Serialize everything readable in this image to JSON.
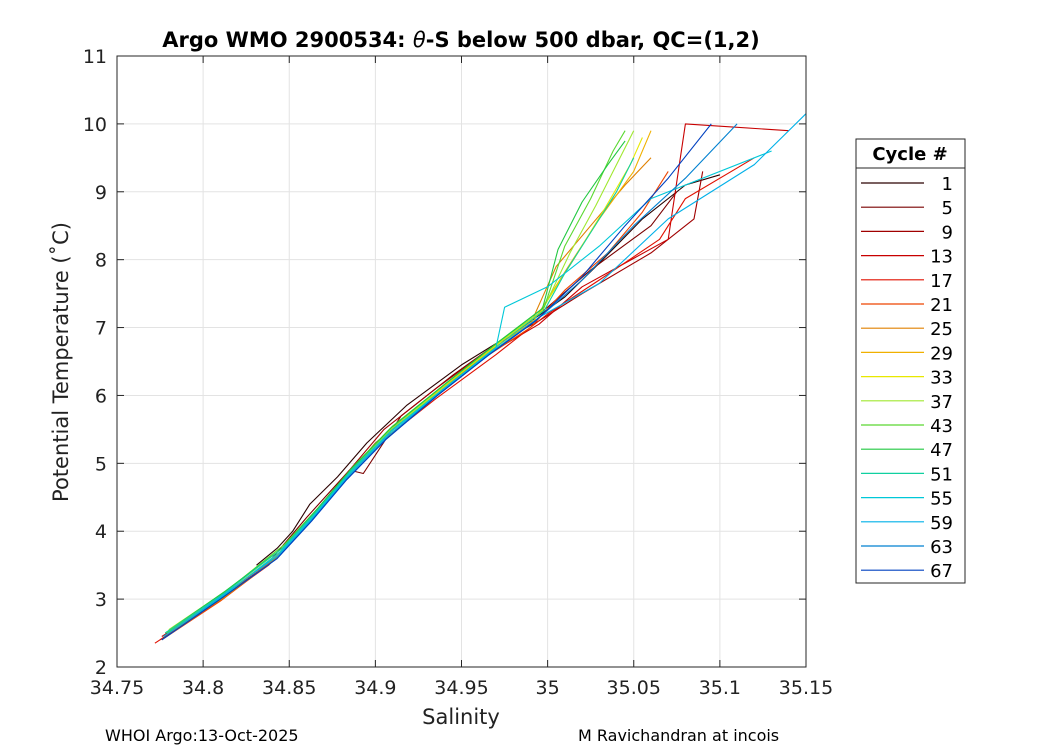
{
  "chart_data": {
    "type": "line",
    "title_prefix": "Argo WMO 2900534: ",
    "title_theta": "θ",
    "title_suffix": "-S below 500 dbar,  QC=(1,2)",
    "xlabel": "Salinity",
    "ylabel": "Potential Temperature (˚C)",
    "xlim": [
      34.75,
      35.15
    ],
    "ylim": [
      2,
      11
    ],
    "xticks": [
      34.75,
      34.8,
      34.85,
      34.9,
      34.95,
      35,
      35.05,
      35.1,
      35.15
    ],
    "xtick_labels": [
      "34.75",
      "34.8",
      "34.85",
      "34.9",
      "34.95",
      "35",
      "35.05",
      "35.1",
      "35.15"
    ],
    "yticks": [
      2,
      3,
      4,
      5,
      6,
      7,
      8,
      9,
      10,
      11
    ],
    "ytick_labels": [
      "2",
      "3",
      "4",
      "5",
      "6",
      "7",
      "8",
      "9",
      "10",
      "11"
    ],
    "grid": true,
    "legend_title": "Cycle #",
    "legend_position": "outside-right",
    "series": [
      {
        "name": "1",
        "color": "#2a0000",
        "points": [
          [
            34.831,
            3.5
          ],
          [
            34.843,
            3.75
          ],
          [
            34.852,
            4.0
          ],
          [
            34.862,
            4.4
          ],
          [
            34.878,
            4.8
          ],
          [
            34.895,
            5.3
          ],
          [
            34.918,
            5.85
          ],
          [
            34.95,
            6.45
          ],
          [
            34.985,
            7.0
          ],
          [
            35.01,
            7.45
          ],
          [
            35.03,
            7.95
          ],
          [
            35.055,
            8.6
          ],
          [
            35.08,
            9.1
          ],
          [
            35.1,
            9.25
          ]
        ]
      },
      {
        "name": "5",
        "color": "#7a0000",
        "points": [
          [
            34.78,
            2.5
          ],
          [
            34.81,
            3.0
          ],
          [
            34.84,
            3.6
          ],
          [
            34.86,
            4.2
          ],
          [
            34.885,
            4.9
          ],
          [
            34.893,
            4.85
          ],
          [
            34.915,
            5.7
          ],
          [
            34.945,
            6.3
          ],
          [
            34.978,
            6.9
          ],
          [
            35.0,
            7.3
          ],
          [
            35.025,
            7.85
          ],
          [
            35.06,
            8.5
          ],
          [
            35.075,
            9.0
          ]
        ]
      },
      {
        "name": "9",
        "color": "#a00000",
        "points": [
          [
            34.775,
            2.4
          ],
          [
            34.808,
            2.95
          ],
          [
            34.84,
            3.55
          ],
          [
            34.862,
            4.15
          ],
          [
            34.88,
            4.75
          ],
          [
            34.905,
            5.5
          ],
          [
            34.935,
            6.1
          ],
          [
            34.97,
            6.75
          ],
          [
            34.995,
            7.1
          ],
          [
            35.02,
            7.5
          ],
          [
            35.06,
            8.1
          ],
          [
            35.085,
            8.6
          ],
          [
            35.09,
            9.3
          ]
        ]
      },
      {
        "name": "13",
        "color": "#c80000",
        "points": [
          [
            34.776,
            2.45
          ],
          [
            34.81,
            3.0
          ],
          [
            34.842,
            3.6
          ],
          [
            34.863,
            4.2
          ],
          [
            34.88,
            4.7
          ],
          [
            34.9,
            5.3
          ],
          [
            34.93,
            5.95
          ],
          [
            34.965,
            6.6
          ],
          [
            34.995,
            7.05
          ],
          [
            35.02,
            7.6
          ],
          [
            35.07,
            8.3
          ],
          [
            35.08,
            10.0
          ],
          [
            35.14,
            9.9
          ]
        ]
      },
      {
        "name": "17",
        "color": "#e01000",
        "points": [
          [
            34.772,
            2.35
          ],
          [
            34.805,
            2.9
          ],
          [
            34.838,
            3.5
          ],
          [
            34.858,
            4.05
          ],
          [
            34.877,
            4.6
          ],
          [
            34.9,
            5.25
          ],
          [
            34.935,
            5.95
          ],
          [
            34.97,
            6.6
          ],
          [
            35.0,
            7.2
          ],
          [
            35.03,
            7.7
          ],
          [
            35.065,
            8.3
          ],
          [
            35.08,
            8.9
          ],
          [
            35.12,
            9.5
          ]
        ]
      },
      {
        "name": "21",
        "color": "#ee4400",
        "points": [
          [
            34.776,
            2.4
          ],
          [
            34.81,
            2.97
          ],
          [
            34.84,
            3.55
          ],
          [
            34.86,
            4.1
          ],
          [
            34.878,
            4.65
          ],
          [
            34.9,
            5.3
          ],
          [
            34.93,
            5.9
          ],
          [
            34.96,
            6.5
          ],
          [
            34.99,
            7.0
          ],
          [
            35.01,
            7.55
          ],
          [
            35.035,
            8.1
          ],
          [
            35.055,
            8.7
          ],
          [
            35.07,
            9.3
          ]
        ]
      },
      {
        "name": "25",
        "color": "#e08000",
        "points": [
          [
            34.777,
            2.45
          ],
          [
            34.812,
            3.02
          ],
          [
            34.842,
            3.6
          ],
          [
            34.862,
            4.15
          ],
          [
            34.882,
            4.75
          ],
          [
            34.905,
            5.35
          ],
          [
            34.935,
            6.0
          ],
          [
            34.965,
            6.6
          ],
          [
            34.99,
            7.05
          ],
          [
            35.005,
            7.9
          ],
          [
            35.025,
            8.5
          ],
          [
            35.045,
            9.1
          ],
          [
            35.06,
            9.5
          ]
        ]
      },
      {
        "name": "29",
        "color": "#f0b000",
        "points": [
          [
            34.778,
            2.5
          ],
          [
            34.812,
            3.05
          ],
          [
            34.843,
            3.65
          ],
          [
            34.863,
            4.2
          ],
          [
            34.883,
            4.8
          ],
          [
            34.906,
            5.4
          ],
          [
            34.936,
            6.05
          ],
          [
            34.966,
            6.65
          ],
          [
            34.992,
            7.1
          ],
          [
            35.012,
            7.9
          ],
          [
            35.03,
            8.6
          ],
          [
            35.05,
            9.3
          ],
          [
            35.06,
            9.9
          ]
        ]
      },
      {
        "name": "33",
        "color": "#e8e800",
        "points": [
          [
            34.779,
            2.5
          ],
          [
            34.814,
            3.1
          ],
          [
            34.845,
            3.7
          ],
          [
            34.865,
            4.25
          ],
          [
            34.885,
            4.85
          ],
          [
            34.908,
            5.45
          ],
          [
            34.938,
            6.1
          ],
          [
            34.968,
            6.7
          ],
          [
            34.995,
            7.2
          ],
          [
            35.015,
            8.0
          ],
          [
            35.032,
            8.7
          ],
          [
            35.048,
            9.4
          ],
          [
            35.055,
            9.8
          ]
        ]
      },
      {
        "name": "37",
        "color": "#a0e830",
        "points": [
          [
            34.78,
            2.55
          ],
          [
            34.815,
            3.15
          ],
          [
            34.846,
            3.75
          ],
          [
            34.866,
            4.3
          ],
          [
            34.886,
            4.9
          ],
          [
            34.909,
            5.5
          ],
          [
            34.94,
            6.15
          ],
          [
            34.97,
            6.75
          ],
          [
            34.997,
            7.25
          ],
          [
            35.013,
            8.1
          ],
          [
            35.028,
            8.8
          ],
          [
            35.042,
            9.5
          ],
          [
            35.05,
            9.9
          ]
        ]
      },
      {
        "name": "43",
        "color": "#5ad830",
        "points": [
          [
            34.779,
            2.5
          ],
          [
            34.815,
            3.15
          ],
          [
            34.847,
            3.8
          ],
          [
            34.867,
            4.35
          ],
          [
            34.887,
            4.95
          ],
          [
            34.91,
            5.55
          ],
          [
            34.942,
            6.2
          ],
          [
            34.972,
            6.8
          ],
          [
            34.998,
            7.3
          ],
          [
            35.01,
            8.2
          ],
          [
            35.025,
            8.9
          ],
          [
            35.038,
            9.6
          ],
          [
            35.045,
            9.9
          ]
        ]
      },
      {
        "name": "47",
        "color": "#20c840",
        "points": [
          [
            34.778,
            2.5
          ],
          [
            34.813,
            3.12
          ],
          [
            34.846,
            3.75
          ],
          [
            34.866,
            4.32
          ],
          [
            34.886,
            4.92
          ],
          [
            34.909,
            5.52
          ],
          [
            34.941,
            6.18
          ],
          [
            34.971,
            6.78
          ],
          [
            34.997,
            7.28
          ],
          [
            35.006,
            8.15
          ],
          [
            35.02,
            8.85
          ],
          [
            35.035,
            9.4
          ],
          [
            35.045,
            9.75
          ]
        ]
      },
      {
        "name": "51",
        "color": "#10d0a0",
        "points": [
          [
            34.778,
            2.5
          ],
          [
            34.813,
            3.1
          ],
          [
            34.846,
            3.75
          ],
          [
            34.866,
            4.3
          ],
          [
            34.886,
            4.9
          ],
          [
            34.91,
            5.5
          ],
          [
            34.942,
            6.15
          ],
          [
            34.972,
            6.75
          ],
          [
            34.998,
            7.25
          ],
          [
            35.01,
            7.8
          ],
          [
            35.025,
            8.4
          ],
          [
            35.04,
            9.0
          ],
          [
            35.05,
            9.5
          ]
        ]
      },
      {
        "name": "55",
        "color": "#00c8d8",
        "points": [
          [
            34.777,
            2.45
          ],
          [
            34.812,
            3.05
          ],
          [
            34.845,
            3.7
          ],
          [
            34.865,
            4.25
          ],
          [
            34.885,
            4.85
          ],
          [
            34.908,
            5.45
          ],
          [
            34.94,
            6.1
          ],
          [
            34.97,
            6.7
          ],
          [
            34.975,
            7.3
          ],
          [
            35.0,
            7.6
          ],
          [
            35.03,
            8.2
          ],
          [
            35.06,
            8.9
          ],
          [
            35.13,
            9.6
          ]
        ]
      },
      {
        "name": "59",
        "color": "#00b0e8",
        "points": [
          [
            34.777,
            2.45
          ],
          [
            34.811,
            3.05
          ],
          [
            34.844,
            3.65
          ],
          [
            34.864,
            4.2
          ],
          [
            34.884,
            4.8
          ],
          [
            34.907,
            5.4
          ],
          [
            34.938,
            6.05
          ],
          [
            34.968,
            6.65
          ],
          [
            34.995,
            7.15
          ],
          [
            35.03,
            7.65
          ],
          [
            35.07,
            8.6
          ],
          [
            35.12,
            9.4
          ],
          [
            35.15,
            10.15
          ]
        ]
      },
      {
        "name": "63",
        "color": "#0080d0",
        "points": [
          [
            34.776,
            2.4
          ],
          [
            34.81,
            3.0
          ],
          [
            34.843,
            3.6
          ],
          [
            34.863,
            4.15
          ],
          [
            34.883,
            4.75
          ],
          [
            34.906,
            5.35
          ],
          [
            34.936,
            6.0
          ],
          [
            34.966,
            6.6
          ],
          [
            34.993,
            7.1
          ],
          [
            35.02,
            7.7
          ],
          [
            35.05,
            8.5
          ],
          [
            35.08,
            9.2
          ],
          [
            35.11,
            10.0
          ]
        ]
      },
      {
        "name": "67",
        "color": "#0040c0",
        "points": [
          [
            34.776,
            2.4
          ],
          [
            34.81,
            3.0
          ],
          [
            34.843,
            3.6
          ],
          [
            34.863,
            4.15
          ],
          [
            34.883,
            4.75
          ],
          [
            34.906,
            5.35
          ],
          [
            34.936,
            6.0
          ],
          [
            34.966,
            6.6
          ],
          [
            34.993,
            7.1
          ],
          [
            35.02,
            7.75
          ],
          [
            35.045,
            8.5
          ],
          [
            35.07,
            9.2
          ],
          [
            35.095,
            10.0
          ]
        ]
      }
    ]
  },
  "footer": {
    "left": "WHOI Argo:13-Oct-2025",
    "right": "M Ravichandran at incois"
  }
}
